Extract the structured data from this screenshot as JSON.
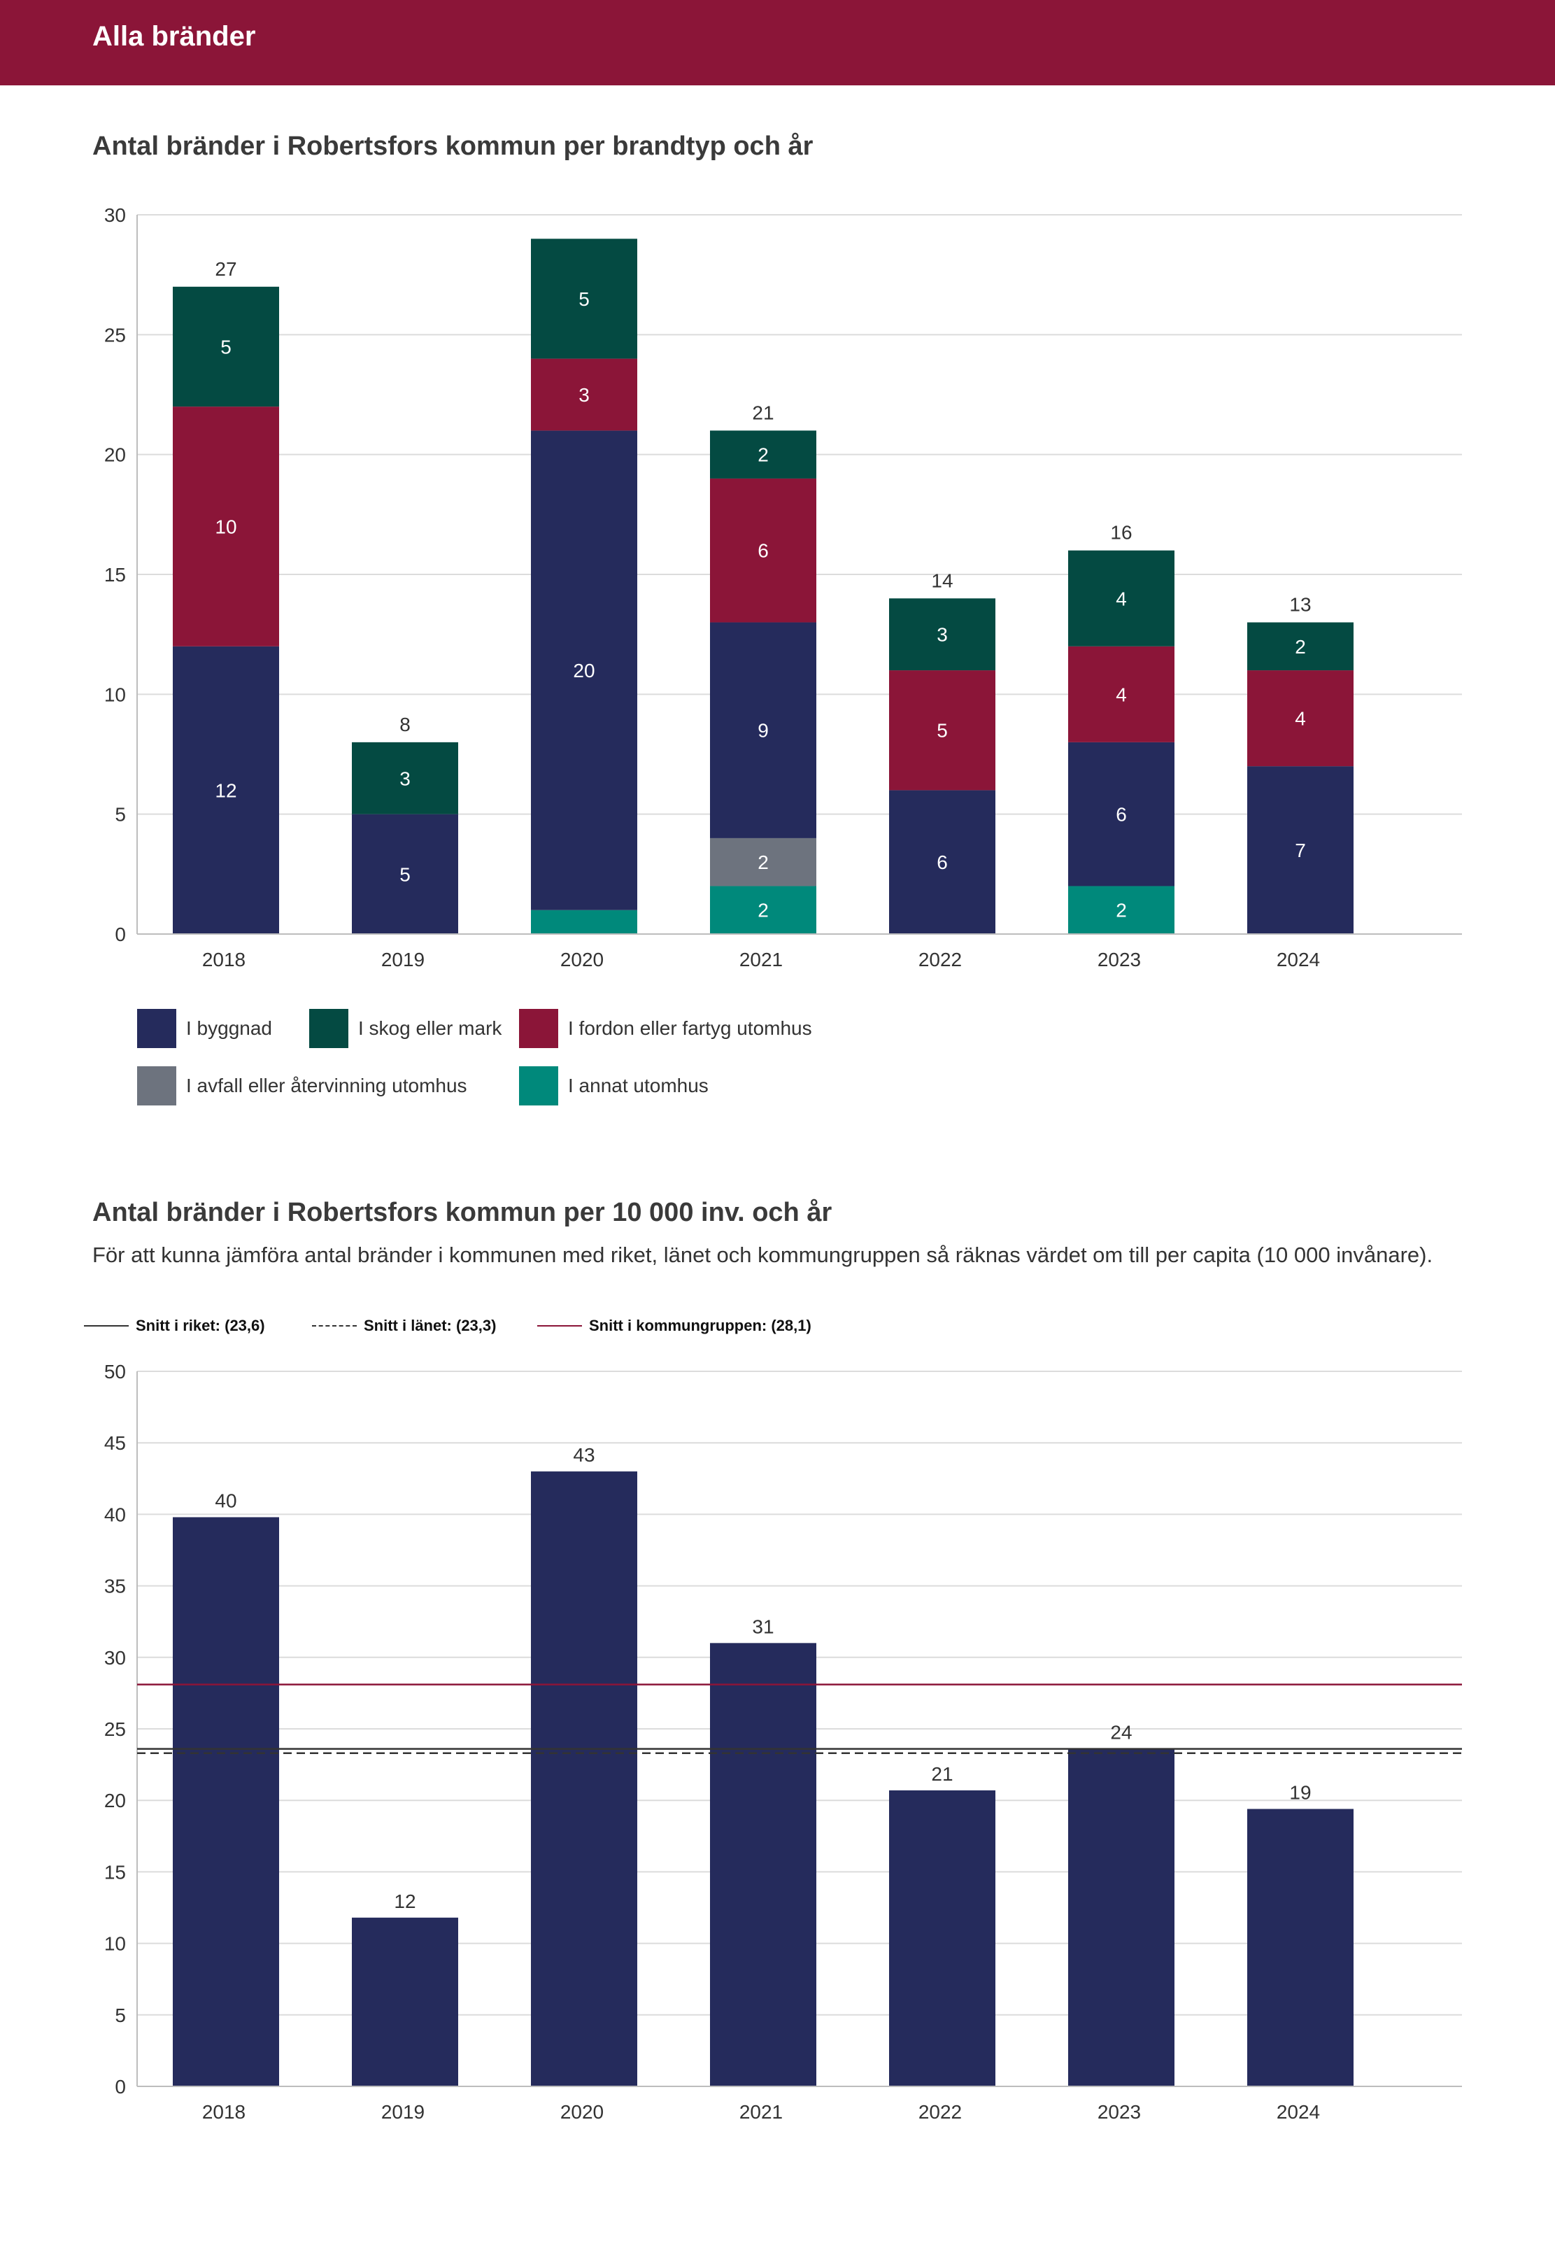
{
  "header": {
    "title": "Alla bränder"
  },
  "chart1": {
    "title": "Antal bränder i Robertsfors kommun per brandtyp och år"
  },
  "chart2": {
    "title": "Antal bränder i Robertsfors kommun per 10 000 inv. och år",
    "subtitle": "För att kunna jämföra antal bränder i kommunen med riket, länet och kommungruppen så räknas värdet om till per capita (10 000 invånare)."
  },
  "colors": {
    "header": "#8b1538",
    "byggnad": "#252b5c",
    "skog": "#044a42",
    "fordon": "#8b1538",
    "avfall": "#6d737e",
    "annat": "#00897b",
    "grid": "#dcdcdc",
    "riket": "#333333",
    "lanet": "#333333",
    "kommungrupp": "#8b1538"
  },
  "chart_data": [
    {
      "type": "bar",
      "stacked": true,
      "title": "Antal bränder i Robertsfors kommun per brandtyp och år",
      "categories": [
        "2018",
        "2019",
        "2020",
        "2021",
        "2022",
        "2023",
        "2024"
      ],
      "yticks": [
        "0",
        "5",
        "10",
        "15",
        "20",
        "25",
        "30"
      ],
      "ylim": [
        0,
        30
      ],
      "series": [
        {
          "name": "I annat utomhus",
          "color_key": "annat",
          "values": [
            0,
            0,
            1,
            2,
            0,
            2,
            0
          ],
          "labels": [
            "",
            "",
            "",
            "2",
            "",
            "2",
            ""
          ]
        },
        {
          "name": "I avfall eller återvinning utomhus",
          "color_key": "avfall",
          "values": [
            0,
            0,
            0,
            2,
            0,
            0,
            0
          ],
          "labels": [
            "",
            "",
            "",
            "2",
            "",
            "",
            ""
          ]
        },
        {
          "name": "I byggnad",
          "color_key": "byggnad",
          "values": [
            12,
            5,
            20,
            9,
            6,
            6,
            7
          ],
          "labels": [
            "12",
            "5",
            "20",
            "9",
            "6",
            "6",
            "7"
          ]
        },
        {
          "name": "I fordon eller fartyg utomhus",
          "color_key": "fordon",
          "values": [
            10,
            0,
            3,
            6,
            5,
            4,
            4
          ],
          "labels": [
            "10",
            "",
            "3",
            "6",
            "5",
            "4",
            "4"
          ]
        },
        {
          "name": "I skog eller mark",
          "color_key": "skog",
          "values": [
            5,
            3,
            5,
            2,
            3,
            4,
            2
          ],
          "labels": [
            "5",
            "3",
            "5",
            "2",
            "3",
            "4",
            "2"
          ]
        }
      ],
      "totals": [
        "27",
        "8",
        "",
        "21",
        "14",
        "16",
        "13"
      ],
      "legend": [
        {
          "label": "I byggnad",
          "color_key": "byggnad"
        },
        {
          "label": "I skog eller mark",
          "color_key": "skog"
        },
        {
          "label": "I fordon eller fartyg utomhus",
          "color_key": "fordon"
        },
        {
          "label": "I avfall eller återvinning utomhus",
          "color_key": "avfall"
        },
        {
          "label": "I annat utomhus",
          "color_key": "annat"
        }
      ]
    },
    {
      "type": "bar",
      "title": "Antal bränder i Robertsfors kommun per 10 000 inv. och år",
      "categories": [
        "2018",
        "2019",
        "2020",
        "2021",
        "2022",
        "2023",
        "2024"
      ],
      "yticks": [
        "0",
        "5",
        "10",
        "15",
        "20",
        "25",
        "30",
        "35",
        "40",
        "45",
        "50"
      ],
      "ylim": [
        0,
        50
      ],
      "values": [
        39.8,
        11.8,
        43,
        31,
        20.7,
        23.6,
        19.4
      ],
      "value_labels": [
        "40",
        "12",
        "43",
        "31",
        "21",
        "24",
        "19"
      ],
      "reference_lines": [
        {
          "label": "Snitt i riket: (23,6)",
          "value": 23.6,
          "style": "solid",
          "color_key": "riket"
        },
        {
          "label": "Snitt i länet: (23,3)",
          "value": 23.3,
          "style": "dashed",
          "color_key": "lanet"
        },
        {
          "label": "Snitt i kommungruppen: (28,1)",
          "value": 28.1,
          "style": "solid",
          "color_key": "kommungrupp"
        }
      ]
    }
  ]
}
